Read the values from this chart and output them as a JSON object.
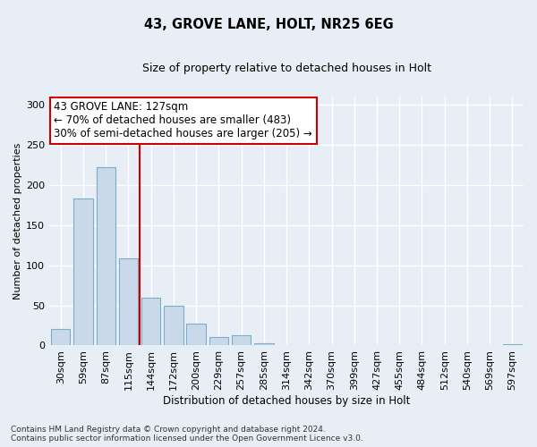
{
  "title": "43, GROVE LANE, HOLT, NR25 6EG",
  "subtitle": "Size of property relative to detached houses in Holt",
  "xlabel": "Distribution of detached houses by size in Holt",
  "ylabel": "Number of detached properties",
  "bar_labels": [
    "30sqm",
    "59sqm",
    "87sqm",
    "115sqm",
    "144sqm",
    "172sqm",
    "200sqm",
    "229sqm",
    "257sqm",
    "285sqm",
    "314sqm",
    "342sqm",
    "370sqm",
    "399sqm",
    "427sqm",
    "455sqm",
    "484sqm",
    "512sqm",
    "540sqm",
    "569sqm",
    "597sqm"
  ],
  "bar_values": [
    20,
    183,
    222,
    108,
    60,
    50,
    27,
    10,
    13,
    3,
    0,
    0,
    0,
    0,
    0,
    0,
    0,
    0,
    0,
    0,
    2
  ],
  "bar_color": "#c9d9ea",
  "bar_edge_color": "#7aafc8",
  "vline_color": "#cc0000",
  "annotation_text": "43 GROVE LANE: 127sqm\n← 70% of detached houses are smaller (483)\n30% of semi-detached houses are larger (205) →",
  "annotation_box_color": "#ffffff",
  "annotation_box_edge": "#cc0000",
  "ylim": [
    0,
    310
  ],
  "yticks": [
    0,
    50,
    100,
    150,
    200,
    250,
    300
  ],
  "bg_color": "#e8eef5",
  "grid_color": "#ffffff",
  "footer": "Contains HM Land Registry data © Crown copyright and database right 2024.\nContains public sector information licensed under the Open Government Licence v3.0."
}
